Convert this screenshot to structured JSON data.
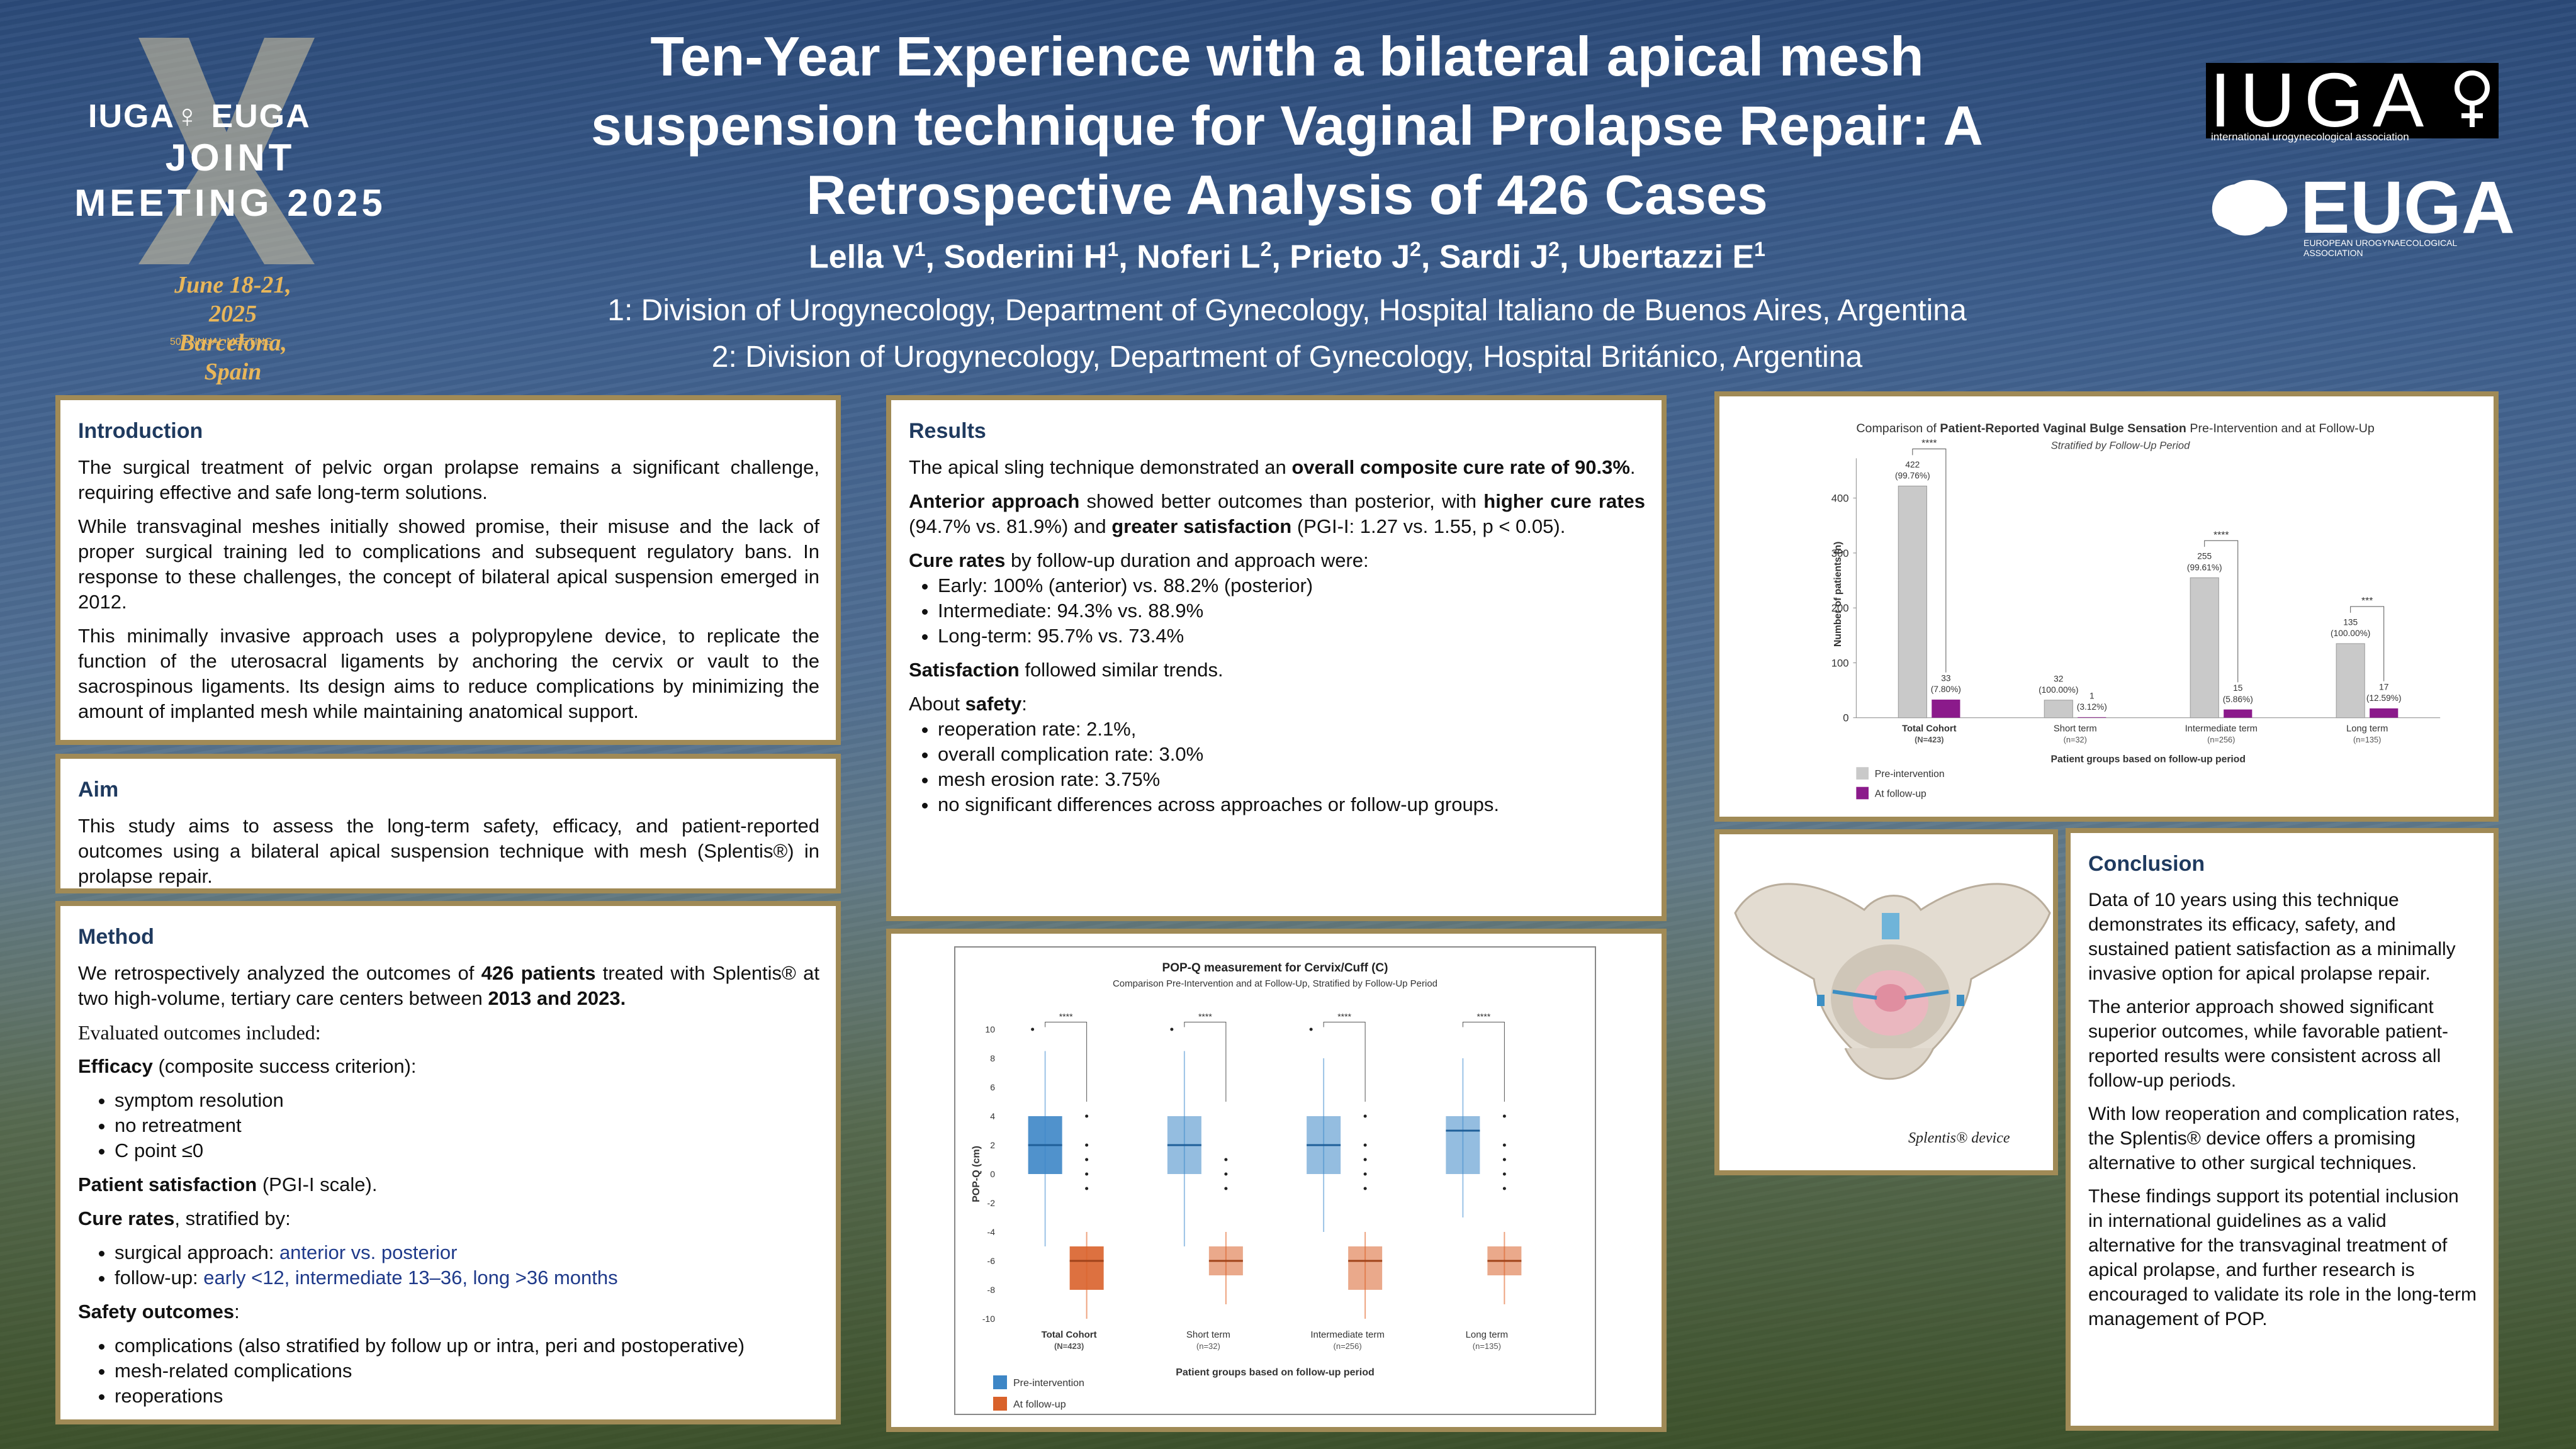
{
  "header": {
    "joint_logo": {
      "brand_line": "IUGA♀ EUGA",
      "title": "JOINT MEETING 2025",
      "dates": "June 18-21, 2025",
      "place": "Barcelona, Spain",
      "anniversary": "50 ANNUAL MEETING"
    },
    "title": "Ten-Year Experience with a bilateral apical mesh suspension technique for Vaginal Prolapse Repair: A Retrospective Analysis of 426 Cases",
    "authors": [
      {
        "name": "Lella V",
        "aff": "1"
      },
      {
        "name": "Soderini H",
        "aff": "1"
      },
      {
        "name": "Noferi L",
        "aff": "2"
      },
      {
        "name": "Prieto J",
        "aff": "2"
      },
      {
        "name": "Sardi J",
        "aff": "2"
      },
      {
        "name": "Ubertazzi E",
        "aff": "1"
      }
    ],
    "affiliation_1": "1: Division of Urogynecology, Department of Gynecology, Hospital Italiano de Buenos Aires, Argentina",
    "affiliation_2": "2: Division of Urogynecology, Department of Gynecology, Hospital Británico, Argentina",
    "iuga_logo": {
      "text": "IUGA",
      "sub": "international urogynecological association"
    },
    "euga_logo": {
      "text": "EUGA",
      "sub": "EUROPEAN UROGYNAECOLOGICAL ASSOCIATION"
    }
  },
  "introduction": {
    "heading": "Introduction",
    "p1": "The surgical treatment of pelvic organ prolapse remains a significant challenge, requiring effective and safe long-term solutions.",
    "p2": "While transvaginal meshes initially showed promise, their misuse and the lack of proper surgical training led to complications and subsequent regulatory bans. In response to these challenges, the concept of bilateral apical suspension emerged in 2012.",
    "p3": "This minimally invasive approach uses a polypropylene device, to replicate the function of the uterosacral ligaments by anchoring the cervix or vault to the sacrospinous ligaments. Its design aims to reduce complications by minimizing the amount of implanted mesh while maintaining anatomical support."
  },
  "aim": {
    "heading": "Aim",
    "p1": "This study aims to assess the long-term safety, efficacy, and patient-reported outcomes using a bilateral apical suspension technique with mesh (Splentis®) in prolapse repair."
  },
  "method": {
    "heading": "Method",
    "p1_a": "We retrospectively analyzed the outcomes of ",
    "p1_b": "426 patients",
    "p1_c": " treated with Splentis® at two high-volume, tertiary care centers between ",
    "p1_d": "2013 and 2023.",
    "evaluated": "Evaluated outcomes included:",
    "efficacy_b": "Efficacy",
    "efficacy_rest": " (composite success criterion):",
    "efficacy_items": [
      "symptom resolution",
      "no retreatment",
      "C point ≤0"
    ],
    "satisfaction_b": "Patient satisfaction",
    "satisfaction_rest": " (PGI-I scale).",
    "cure_b": "Cure rates",
    "cure_rest": ", stratified by:",
    "cure_items": [
      {
        "label": "surgical approach: ",
        "value": "anterior vs. posterior"
      },
      {
        "label": "follow-up: ",
        "value": "early <12, intermediate 13–36, long >36 months"
      }
    ],
    "safety_b": "Safety outcomes",
    "safety_rest": ":",
    "safety_items": [
      "complications (also stratified by follow up or intra, peri and postoperative)",
      "mesh-related complications",
      "reoperations"
    ]
  },
  "results": {
    "heading": "Results",
    "p1_a": "The apical sling technique demonstrated an ",
    "p1_b": "overall composite cure rate of 90.3%",
    "p1_c": ".",
    "p2_a": "Anterior approach",
    "p2_b": " showed better outcomes than posterior, with ",
    "p2_c": "higher cure rates",
    "p2_d": " (94.7% vs. 81.9%) and ",
    "p2_e": "greater satisfaction",
    "p2_f": " (PGI-I: 1.27 vs. 1.55,          p < 0.05).",
    "p3_a": "Cure rates",
    "p3_b": " by follow-up duration and approach were:",
    "cure_items": [
      "Early: 100% (anterior) vs. 88.2% (posterior)",
      "Intermediate: 94.3% vs. 88.9%",
      "Long-term: 95.7% vs. 73.4%"
    ],
    "p4_a": "Satisfaction",
    "p4_b": " followed similar trends.",
    "p5_a": "About ",
    "p5_b": "safety",
    "p5_c": ":",
    "safety_items": [
      "reoperation rate: 2.1%,",
      "overall complication rate: 3.0%",
      "mesh erosion rate: 3.75%",
      "no significant differences across approaches or follow-up groups."
    ]
  },
  "conclusion": {
    "heading": "Conclusion",
    "p1": "Data of 10 years using this technique demonstrates its efficacy, safety, and sustained patient satisfaction as a minimally invasive option for apical prolapse repair.",
    "p2": "The anterior approach showed significant superior outcomes, while favorable patient-reported results were consistent across all follow-up periods.",
    "p3": "With low reoperation and complication rates, the Splentis® device offers a promising alternative to other surgical techniques.",
    "p4": "These findings support its potential inclusion in international guidelines as a valid alternative for the transvaginal treatment of apical prolapse, and further research is encouraged to validate its role in the long-term management of POP."
  },
  "figure_pelvis": {
    "caption": "Splentis® device",
    "icon": "pelvis-illustration"
  },
  "colors": {
    "pre": "#c9c9c9",
    "follow": "#8b1a8b",
    "box_pre": "#3d86c6",
    "box_follow": "#d9622b",
    "border": "#a08a56",
    "heading": "#1f3a5f"
  },
  "chart_data": [
    {
      "type": "bar",
      "title_prefix": "Comparison of ",
      "title_bold": "Patient-Reported Vaginal Bulge Sensation",
      "title_suffix": " Pre-Intervention and at Follow-Up",
      "subtitle": "Stratified by Follow-Up Period",
      "xlabel": "Patient groups based on follow-up period",
      "ylabel": "Number of patients (n)",
      "ylim": [
        0,
        450
      ],
      "yticks": [
        0,
        100,
        200,
        300,
        400
      ],
      "categories": [
        "Total Cohort",
        "Short term",
        "Intermediate term",
        "Long term"
      ],
      "category_sub": [
        "(N=423)",
        "(n=32)",
        "(n=256)",
        "(n=135)"
      ],
      "series": [
        {
          "name": "Pre-intervention",
          "values": [
            422,
            32,
            255,
            135
          ],
          "labels": [
            "422\n(99.76%)",
            "32\n(100.00%)",
            "255\n(99.61%)",
            "135\n(100.00%)"
          ]
        },
        {
          "name": "At follow-up",
          "values": [
            33,
            1,
            15,
            17
          ],
          "labels": [
            "33\n(7.80%)",
            "1\n(3.12%)",
            "15\n(5.86%)",
            "17\n(12.59%)"
          ]
        }
      ],
      "significance": [
        "****",
        "",
        "****",
        "***"
      ],
      "legend": "bottom-left"
    },
    {
      "type": "box",
      "title": "POP-Q measurement for Cervix/Cuff (C)",
      "subtitle": "Comparison Pre-Intervention and at Follow-Up, Stratified by Follow-Up Period",
      "xlabel": "Patient groups based on follow-up period",
      "ylabel": "POP-Q (cm)",
      "ylim": [
        -10,
        10
      ],
      "yticks": [
        10,
        8,
        6,
        4,
        2,
        0,
        -2,
        -4,
        -6,
        -8,
        -10
      ],
      "categories": [
        "Total Cohort",
        "Short term",
        "Intermediate term",
        "Long term"
      ],
      "category_sub": [
        "(N=423)",
        "(n=32)",
        "(n=256)",
        "(n=135)"
      ],
      "series": [
        {
          "name": "Pre-intervention",
          "boxes": [
            {
              "q1": 0,
              "median": 2,
              "q3": 4,
              "wlo": -5,
              "whi": 8.5,
              "out": [
                10
              ]
            },
            {
              "q1": 0,
              "median": 2,
              "q3": 4,
              "wlo": -5,
              "whi": 8.5,
              "out": [
                10
              ]
            },
            {
              "q1": 0,
              "median": 2,
              "q3": 4,
              "wlo": -4,
              "whi": 8,
              "out": [
                10
              ]
            },
            {
              "q1": 0,
              "median": 3,
              "q3": 4,
              "wlo": -3,
              "whi": 8,
              "out": []
            }
          ]
        },
        {
          "name": "At follow-up",
          "boxes": [
            {
              "q1": -8,
              "median": -6,
              "q3": -5,
              "wlo": -10,
              "whi": -4,
              "out": [
                4,
                2,
                1,
                0,
                -1
              ]
            },
            {
              "q1": -7,
              "median": -6,
              "q3": -5,
              "wlo": -9,
              "whi": -4,
              "out": [
                1,
                0,
                -1
              ]
            },
            {
              "q1": -8,
              "median": -6,
              "q3": -5,
              "wlo": -10,
              "whi": -4,
              "out": [
                4,
                2,
                1,
                0,
                -1
              ]
            },
            {
              "q1": -7,
              "median": -6,
              "q3": -5,
              "wlo": -9,
              "whi": -4,
              "out": [
                4,
                2,
                1,
                0,
                -1
              ]
            }
          ]
        }
      ],
      "significance": [
        "****",
        "****",
        "****",
        "****"
      ],
      "legend": "bottom-left"
    }
  ]
}
